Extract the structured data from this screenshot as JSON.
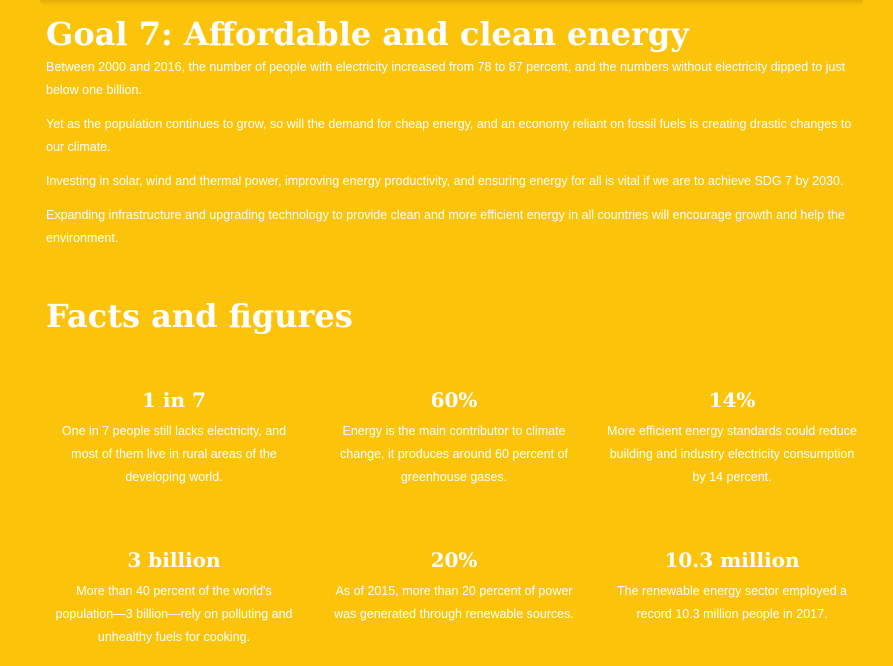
{
  "goal": {
    "title": "Goal 7: Affordable and clean energy",
    "paragraphs": [
      "Between 2000 and 2016, the number of people with electricity increased from 78 to 87 percent, and the numbers without electricity dipped to just below one billion.",
      "Yet as the population continues to grow, so will the demand for cheap energy, and an economy reliant on fossil fuels is creating drastic changes to our climate.",
      "Investing in solar, wind and thermal power, improving energy productivity, and ensuring energy for all is vital if we are to achieve SDG 7 by 2030.",
      "Expanding infrastructure and upgrading technology to provide clean and more efficient energy in all countries will encourage growth and help the environment."
    ]
  },
  "facts": {
    "title": "Facts and figures",
    "items": [
      {
        "stat": "1 in 7",
        "text": "One in 7 people still lacks electricity, and most of them live in rural areas of the developing world."
      },
      {
        "stat": "60%",
        "text": "Energy is the main contributor to climate change, it produces around 60 percent of greenhouse gases."
      },
      {
        "stat": "14%",
        "text": "More efficient energy standards could reduce building and industry electricity consumption by 14 percent."
      },
      {
        "stat": "3 billion",
        "text": "More than 40 percent of the world's population—3 billion—rely on polluting and unhealthy fuels for cooking."
      },
      {
        "stat": "20%",
        "text": "As of 2015, more than 20 percent of power was generated through renewable sources."
      },
      {
        "stat": "10.3 million",
        "text": "The renewable energy sector employed a record 10.3 million people in 2017."
      }
    ]
  },
  "colors": {
    "background": "#fcc30b",
    "text": "#ffffff"
  }
}
